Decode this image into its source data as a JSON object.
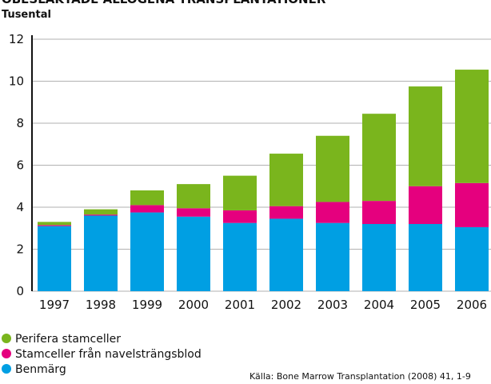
{
  "chart_data": {
    "type": "stacked_bar",
    "title": "OBESLÄKTADE ALLOGENA TRANSPLANTATIONER",
    "subtitle": "Tusental",
    "source": "Källa: Bone Marrow Transplantation (2008) 41, 1-9",
    "categories": [
      "1997",
      "1998",
      "1999",
      "2000",
      "2001",
      "2002",
      "2003",
      "2004",
      "2005",
      "2006"
    ],
    "series": [
      {
        "name": "Benmärg",
        "color": "#009fe3",
        "values": [
          3.1,
          3.6,
          3.75,
          3.55,
          3.25,
          3.45,
          3.25,
          3.2,
          3.2,
          3.05
        ]
      },
      {
        "name": "Stamceller från navelsträngsblod",
        "color": "#e5007e",
        "values": [
          0.05,
          0.05,
          0.35,
          0.4,
          0.6,
          0.6,
          1.0,
          1.1,
          1.8,
          2.1
        ]
      },
      {
        "name": "Perifera stamceller",
        "color": "#7ab51d",
        "values": [
          0.15,
          0.25,
          0.7,
          1.15,
          1.65,
          2.5,
          3.15,
          4.15,
          4.75,
          5.4
        ]
      }
    ],
    "ylim": [
      0,
      12
    ],
    "yticks": [
      0,
      2,
      4,
      6,
      8,
      10,
      12
    ],
    "grid": true
  }
}
